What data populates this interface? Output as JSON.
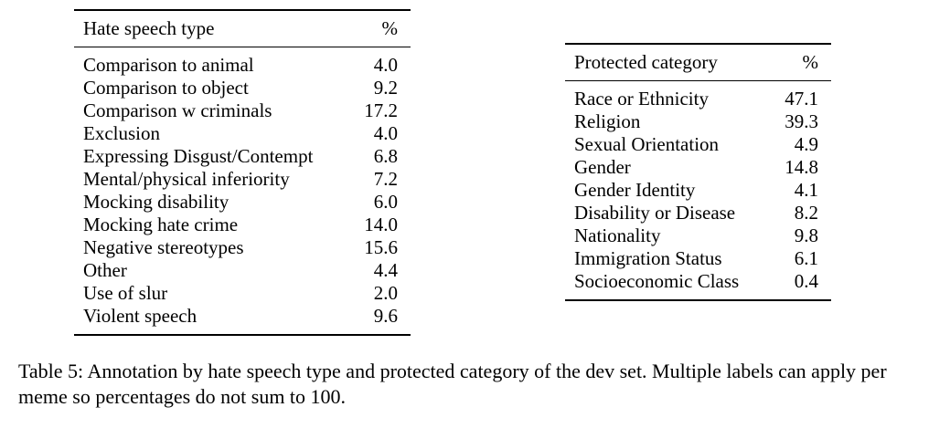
{
  "table_left": {
    "header": {
      "label": "Hate speech type",
      "value": "%"
    },
    "rows": [
      {
        "label": "Comparison to animal",
        "value": "4.0"
      },
      {
        "label": "Comparison to object",
        "value": "9.2"
      },
      {
        "label": "Comparison w criminals",
        "value": "17.2"
      },
      {
        "label": "Exclusion",
        "value": "4.0"
      },
      {
        "label": "Expressing Disgust/Contempt",
        "value": "6.8"
      },
      {
        "label": "Mental/physical inferiority",
        "value": "7.2"
      },
      {
        "label": "Mocking disability",
        "value": "6.0"
      },
      {
        "label": "Mocking hate crime",
        "value": "14.0"
      },
      {
        "label": "Negative stereotypes",
        "value": "15.6"
      },
      {
        "label": "Other",
        "value": "4.4"
      },
      {
        "label": "Use of slur",
        "value": "2.0"
      },
      {
        "label": "Violent speech",
        "value": "9.6"
      }
    ]
  },
  "table_right": {
    "header": {
      "label": "Protected category",
      "value": "%"
    },
    "rows": [
      {
        "label": "Race or Ethnicity",
        "value": "47.1"
      },
      {
        "label": "Religion",
        "value": "39.3"
      },
      {
        "label": "Sexual Orientation",
        "value": "4.9"
      },
      {
        "label": "Gender",
        "value": "14.8"
      },
      {
        "label": "Gender Identity",
        "value": "4.1"
      },
      {
        "label": "Disability or Disease",
        "value": "8.2"
      },
      {
        "label": "Nationality",
        "value": "9.8"
      },
      {
        "label": "Immigration Status",
        "value": "6.1"
      },
      {
        "label": "Socioeconomic Class",
        "value": "0.4"
      }
    ]
  },
  "caption": "Table 5: Annotation by hate speech type and protected category of the dev set. Multiple labels can apply per meme so percentages do not sum to 100."
}
